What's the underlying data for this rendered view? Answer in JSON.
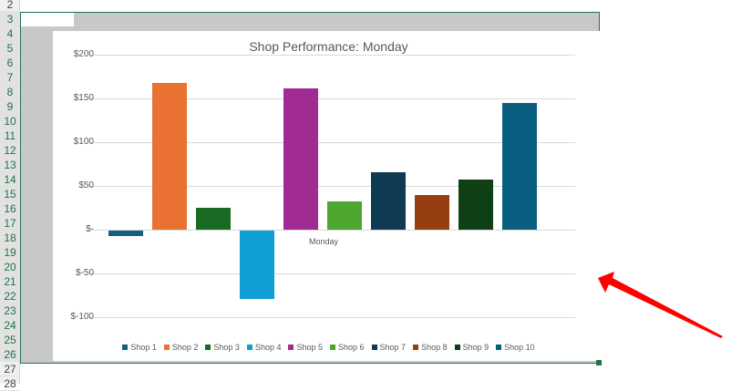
{
  "spreadsheet": {
    "row_numbers": [
      "2",
      "3",
      "4",
      "5",
      "6",
      "7",
      "8",
      "9",
      "10",
      "11",
      "12",
      "13",
      "14",
      "15",
      "16",
      "17",
      "18",
      "19",
      "20",
      "21",
      "22",
      "23",
      "24",
      "25",
      "26",
      "27",
      "28"
    ],
    "selected_rows_from": "3",
    "selected_rows_to": "26"
  },
  "chart_data": {
    "type": "bar",
    "title": "Shop Performance: Monday",
    "xlabel": "",
    "ylabel": "",
    "categories": [
      "Monday"
    ],
    "series": [
      {
        "name": "Shop 1",
        "values": [
          -6
        ],
        "color": "#156082"
      },
      {
        "name": "Shop 2",
        "values": [
          168
        ],
        "color": "#e97132"
      },
      {
        "name": "Shop 3",
        "values": [
          25
        ],
        "color": "#196b24"
      },
      {
        "name": "Shop 4",
        "values": [
          -78
        ],
        "color": "#0f9ed5"
      },
      {
        "name": "Shop 5",
        "values": [
          161
        ],
        "color": "#a02b93"
      },
      {
        "name": "Shop 6",
        "values": [
          32
        ],
        "color": "#4ea72e"
      },
      {
        "name": "Shop 7",
        "values": [
          66
        ],
        "color": "#0e3a52"
      },
      {
        "name": "Shop 8",
        "values": [
          40
        ],
        "color": "#953f11"
      },
      {
        "name": "Shop 9",
        "values": [
          57
        ],
        "color": "#0f3f15"
      },
      {
        "name": "Shop 10",
        "values": [
          145
        ],
        "color": "#0a5f80"
      }
    ],
    "y_ticks": [
      "$200",
      "$150",
      "$100",
      "$50",
      "$-",
      "$-50",
      "$-100"
    ],
    "y_tick_values": [
      200,
      150,
      100,
      50,
      0,
      -50,
      -100
    ],
    "ylim": [
      -100,
      200
    ],
    "grid": true,
    "legend_position": "bottom"
  },
  "annotation": {
    "arrow_color": "#ff0000",
    "arrow_target": "chart-frame-right-edge"
  }
}
